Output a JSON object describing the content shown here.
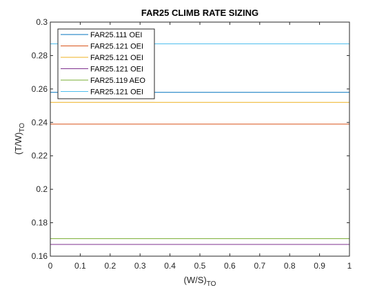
{
  "chart_data": {
    "type": "line",
    "title": "FAR25 CLIMB RATE SIZING",
    "xlabel": "(W/S)",
    "xlabel_sub": "TO",
    "ylabel": "(T/W)",
    "ylabel_sub": "TO",
    "xlim": [
      0,
      1
    ],
    "ylim": [
      0.16,
      0.3
    ],
    "xticks": [
      0,
      0.1,
      0.2,
      0.3,
      0.4,
      0.5,
      0.6,
      0.7,
      0.8,
      0.9,
      1
    ],
    "xtick_labels": [
      "0",
      "0.1",
      "0.2",
      "0.3",
      "0.4",
      "0.5",
      "0.6",
      "0.7",
      "0.8",
      "0.9",
      "1"
    ],
    "yticks": [
      0.16,
      0.18,
      0.2,
      0.22,
      0.24,
      0.26,
      0.28,
      0.3
    ],
    "ytick_labels": [
      "0.16",
      "0.18",
      "0.2",
      "0.22",
      "0.24",
      "0.26",
      "0.28",
      "0.3"
    ],
    "grid": false,
    "legend_position": "top-left",
    "series": [
      {
        "name": "FAR25.111 OEI",
        "color": "#0072BD",
        "x": [
          0,
          1
        ],
        "y": [
          0.258,
          0.258
        ]
      },
      {
        "name": "FAR25.121 OEI",
        "color": "#D95319",
        "x": [
          0,
          1
        ],
        "y": [
          0.239,
          0.239
        ]
      },
      {
        "name": "FAR25.121 OEI",
        "color": "#EDB120",
        "x": [
          0,
          1
        ],
        "y": [
          0.252,
          0.252
        ]
      },
      {
        "name": "FAR25.121 OEI",
        "color": "#7E2F8E",
        "x": [
          0,
          1
        ],
        "y": [
          0.167,
          0.167
        ]
      },
      {
        "name": "FAR25.119 AEO",
        "color": "#77AC30",
        "x": [
          0,
          1
        ],
        "y": [
          0.1705,
          0.1705
        ]
      },
      {
        "name": "FAR25.121 OEI",
        "color": "#4DBEEE",
        "x": [
          0,
          1
        ],
        "y": [
          0.287,
          0.287
        ]
      }
    ]
  }
}
